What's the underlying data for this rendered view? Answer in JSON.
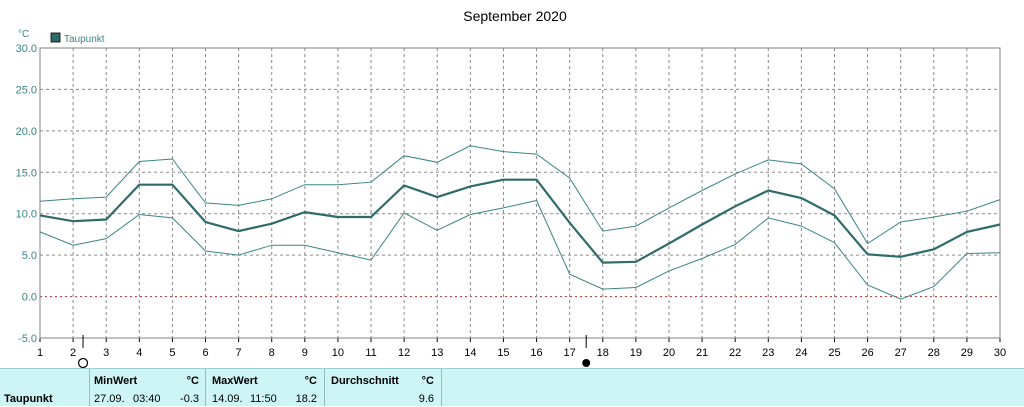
{
  "chart_data": {
    "type": "line",
    "title": "September 2020",
    "unit": "°C",
    "legend": {
      "label": "Taupunkt",
      "color": "#2f6b6b",
      "placement": "top-left"
    },
    "x": [
      1,
      2,
      3,
      4,
      5,
      6,
      7,
      8,
      9,
      10,
      11,
      12,
      13,
      14,
      15,
      16,
      17,
      18,
      19,
      20,
      21,
      22,
      23,
      24,
      25,
      26,
      27,
      28,
      29,
      30
    ],
    "xlim": [
      1,
      30
    ],
    "ylim": [
      -5,
      30
    ],
    "yticks": [
      "-5.0",
      "0.0",
      "5.0",
      "10.0",
      "15.0",
      "20.0",
      "25.0",
      "30.0"
    ],
    "grid": true,
    "zero_line": true,
    "series": [
      {
        "name": "Taupunkt",
        "role": "avg",
        "color": "#2f6b6b",
        "values": [
          9.8,
          9.1,
          9.3,
          13.5,
          13.5,
          9.0,
          7.9,
          8.8,
          10.2,
          9.6,
          9.6,
          13.4,
          12.0,
          13.3,
          14.1,
          14.1,
          8.9,
          4.1,
          4.2,
          6.4,
          8.7,
          10.9,
          12.8,
          11.9,
          9.8,
          5.1,
          4.8,
          5.7,
          7.8,
          8.7
        ]
      },
      {
        "role": "max",
        "color": "#3a8585",
        "values": [
          11.5,
          11.8,
          12.0,
          16.3,
          16.6,
          11.3,
          11.0,
          11.8,
          13.5,
          13.5,
          13.8,
          17.0,
          16.2,
          18.2,
          17.5,
          17.2,
          14.3,
          7.9,
          8.5,
          10.7,
          12.8,
          14.8,
          16.5,
          16.0,
          13.0,
          6.4,
          9.0,
          9.6,
          10.3,
          11.7
        ]
      },
      {
        "role": "min",
        "color": "#3a8585",
        "values": [
          7.8,
          6.2,
          7.0,
          9.9,
          9.5,
          5.5,
          5.0,
          6.2,
          6.2,
          5.3,
          4.4,
          10.1,
          8.0,
          9.9,
          10.7,
          11.6,
          2.7,
          0.9,
          1.1,
          3.1,
          4.6,
          6.3,
          9.5,
          8.5,
          6.5,
          1.4,
          -0.3,
          1.2,
          5.2,
          5.3
        ]
      }
    ],
    "annotations": [
      {
        "type": "moon-symbol",
        "x": 2.3,
        "symbol": "new-moon-outline"
      },
      {
        "type": "moon-symbol",
        "x": 17.5,
        "symbol": "full-moon-filled"
      }
    ]
  },
  "stats": {
    "row_label": "Taupunkt",
    "min": {
      "header": "MinWert",
      "unit": "°C",
      "date": "27.09.",
      "time": "03:40",
      "value": "-0.3"
    },
    "max": {
      "header": "MaxWert",
      "unit": "°C",
      "date": "14.09.",
      "time": "11:50",
      "value": "18.2"
    },
    "avg": {
      "header": "Durchschnitt",
      "unit": "°C",
      "value": "9.6"
    }
  }
}
